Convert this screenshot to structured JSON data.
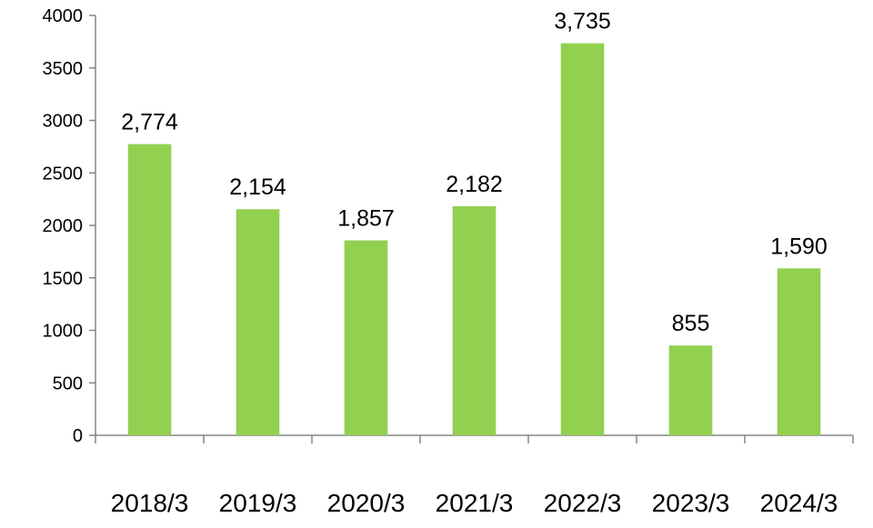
{
  "chart_data": {
    "type": "bar",
    "title": "",
    "xlabel": "",
    "ylabel": "",
    "categories": [
      "2018/3",
      "2019/3",
      "2020/3",
      "2021/3",
      "2022/3",
      "2023/3",
      "2024/3"
    ],
    "values": [
      2774,
      2154,
      1857,
      2182,
      3735,
      855,
      1590
    ],
    "data_labels": [
      "2,774",
      "2,154",
      "1,857",
      "2,182",
      "3,735",
      "855",
      "1,590"
    ],
    "ylim": [
      0,
      4000
    ],
    "yticks": [
      0,
      500,
      1000,
      1500,
      2000,
      2500,
      3000,
      3500,
      4000
    ],
    "ytick_labels": [
      "0",
      "500",
      "1000",
      "1500",
      "2000",
      "2500",
      "3000",
      "3500",
      "4000"
    ],
    "grid": false,
    "legend": "none",
    "colors": {
      "bar": "#92D050",
      "axis": "#868686"
    }
  }
}
